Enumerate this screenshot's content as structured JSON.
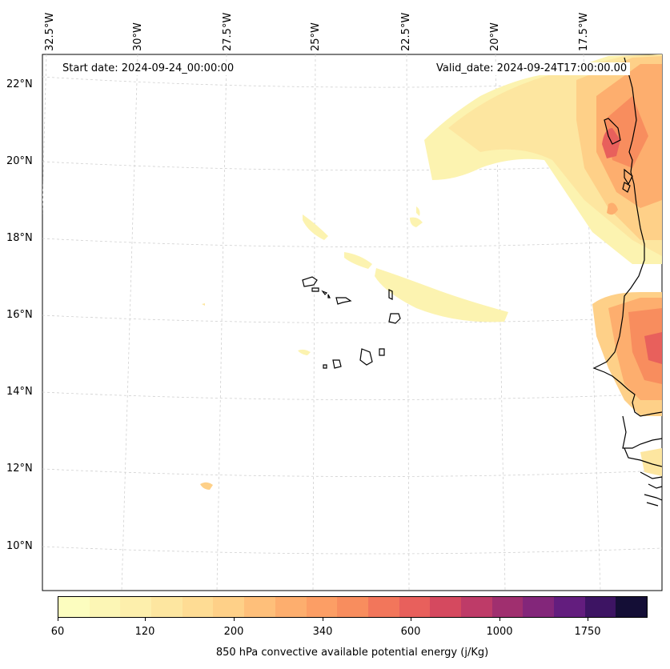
{
  "annotations": {
    "start_date": "Start date: 2024-09-24_00:00:00",
    "valid_date": "Valid_date: 2024-09-24T17:00:00.00"
  },
  "latitude_labels": [
    "22°N",
    "20°N",
    "18°N",
    "16°N",
    "14°N",
    "12°N",
    "10°N"
  ],
  "longitude_labels": [
    "32.5°W",
    "30°W",
    "27.5°W",
    "25°W",
    "22.5°W",
    "20°W",
    "17.5°W"
  ],
  "colorbar": {
    "label": "850 hPa convective available potential energy (j/Kg)",
    "tick_labels": [
      "60",
      "120",
      "200",
      "340",
      "600",
      "1000",
      "1750"
    ],
    "colors": [
      "#fcfdbf",
      "#fcf6b5",
      "#fdefac",
      "#fde6a0",
      "#fedc94",
      "#fed088",
      "#febf7a",
      "#fdae6e",
      "#fc9e65",
      "#f88d5e",
      "#f2765b",
      "#e8605c",
      "#d5495f",
      "#be3b68",
      "#a02f6f",
      "#83267a",
      "#631d7e",
      "#3d1463",
      "#140e36"
    ]
  },
  "map_features": {
    "coastline_color": "#000000",
    "gridline_color": "#d0d0d0"
  }
}
